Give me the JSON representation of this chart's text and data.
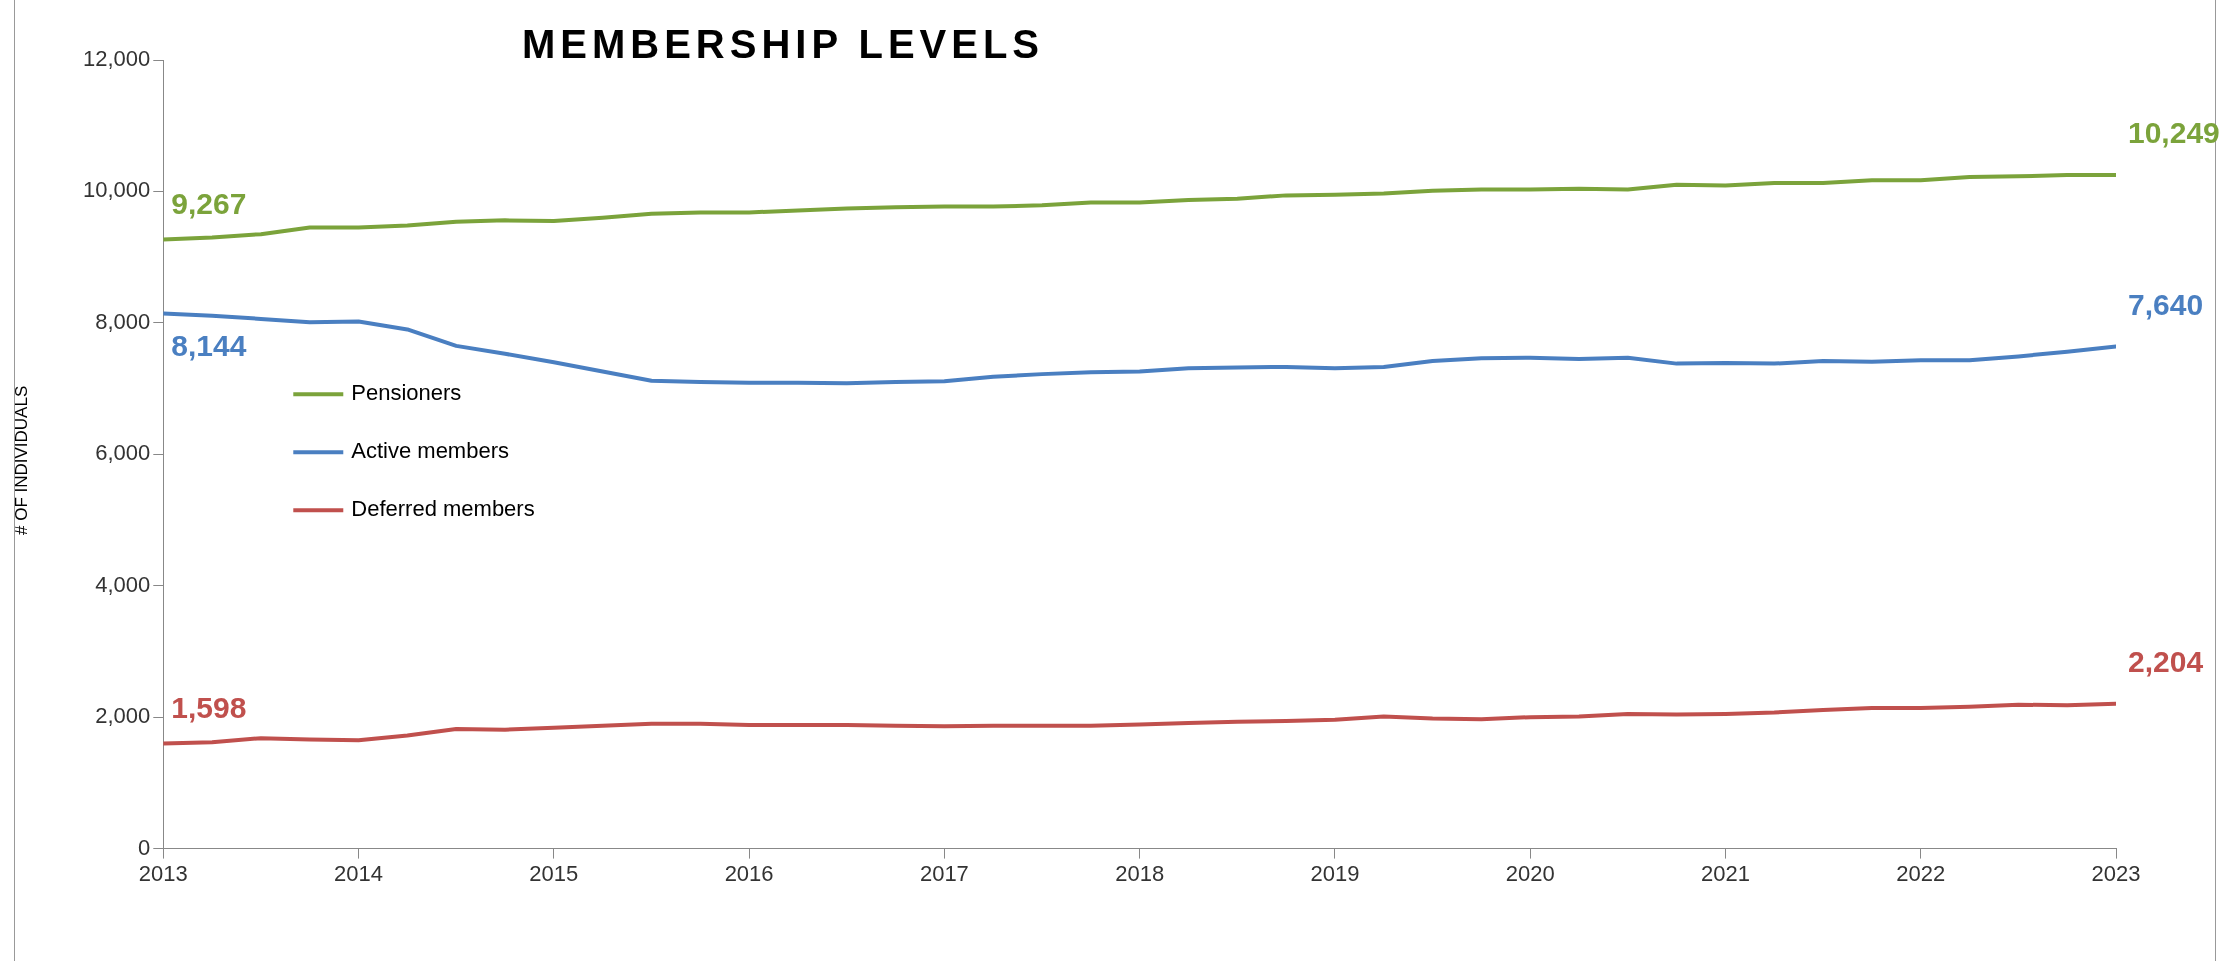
{
  "chart_data": {
    "type": "line",
    "title": "MEMBERSHIP LEVELS",
    "ylabel": "# OF INDIVIDUALS",
    "x": [
      2013,
      2013.25,
      2013.5,
      2013.75,
      2014,
      2014.25,
      2014.5,
      2014.75,
      2015,
      2015.25,
      2015.5,
      2015.75,
      2016,
      2016.25,
      2016.5,
      2016.75,
      2017,
      2017.25,
      2017.5,
      2017.75,
      2018,
      2018.25,
      2018.5,
      2018.75,
      2019,
      2019.25,
      2019.5,
      2019.75,
      2020,
      2020.25,
      2020.5,
      2020.75,
      2021,
      2021.25,
      2021.5,
      2021.75,
      2022,
      2022.25,
      2022.5,
      2022.75,
      2023
    ],
    "series": [
      {
        "name": "Pensioners",
        "color": "#7ba33b",
        "values": [
          9267,
          9300,
          9350,
          9450,
          9450,
          9480,
          9540,
          9560,
          9550,
          9600,
          9660,
          9680,
          9680,
          9710,
          9740,
          9760,
          9770,
          9770,
          9790,
          9830,
          9830,
          9870,
          9890,
          9940,
          9950,
          9970,
          10010,
          10030,
          10030,
          10040,
          10030,
          10100,
          10090,
          10130,
          10130,
          10170,
          10170,
          10220,
          10230,
          10250,
          10249
        ],
        "value_labels": [
          "9,267",
          null,
          null,
          null,
          null,
          null,
          null,
          null,
          null,
          null,
          null,
          null,
          null,
          null,
          null,
          null,
          null,
          null,
          null,
          null,
          null,
          null,
          null,
          null,
          null,
          null,
          null,
          null,
          null,
          null,
          null,
          null,
          null,
          null,
          null,
          null,
          null,
          null,
          null,
          null,
          "10,249"
        ]
      },
      {
        "name": "Active members",
        "color": "#4a7fc1",
        "values": [
          8144,
          8110,
          8060,
          8010,
          8020,
          7900,
          7650,
          7530,
          7400,
          7260,
          7120,
          7100,
          7090,
          7090,
          7080,
          7100,
          7110,
          7180,
          7220,
          7250,
          7260,
          7310,
          7320,
          7330,
          7310,
          7330,
          7420,
          7460,
          7470,
          7450,
          7470,
          7380,
          7390,
          7380,
          7420,
          7410,
          7430,
          7430,
          7490,
          7560,
          7640
        ],
        "value_labels": [
          "8,144",
          null,
          null,
          null,
          null,
          null,
          null,
          null,
          null,
          null,
          null,
          null,
          null,
          null,
          null,
          null,
          null,
          null,
          null,
          null,
          null,
          null,
          null,
          null,
          null,
          null,
          null,
          null,
          null,
          null,
          null,
          null,
          null,
          null,
          null,
          null,
          null,
          null,
          null,
          null,
          "7,640"
        ]
      },
      {
        "name": "Deferred members",
        "color": "#c0504d",
        "values": [
          1598,
          1620,
          1680,
          1660,
          1650,
          1720,
          1820,
          1810,
          1840,
          1870,
          1900,
          1900,
          1880,
          1880,
          1880,
          1870,
          1860,
          1870,
          1870,
          1870,
          1890,
          1910,
          1930,
          1940,
          1960,
          2010,
          1980,
          1970,
          2000,
          2010,
          2050,
          2040,
          2050,
          2070,
          2110,
          2140,
          2140,
          2160,
          2190,
          2180,
          2204
        ],
        "value_labels": [
          "1,598",
          null,
          null,
          null,
          null,
          null,
          null,
          null,
          null,
          null,
          null,
          null,
          null,
          null,
          null,
          null,
          null,
          null,
          null,
          null,
          null,
          null,
          null,
          null,
          null,
          null,
          null,
          null,
          null,
          null,
          null,
          null,
          null,
          null,
          null,
          null,
          null,
          null,
          null,
          null,
          "2,204"
        ]
      }
    ],
    "xlim": [
      2013,
      2023
    ],
    "xticks": [
      2013,
      2014,
      2015,
      2016,
      2017,
      2018,
      2019,
      2020,
      2021,
      2022,
      2023
    ],
    "ylim": [
      0,
      12000
    ],
    "yticks": [
      0,
      {
        "value": 2000,
        "label": "2,000"
      },
      {
        "value": 4000,
        "label": "4,000"
      },
      {
        "value": 6000,
        "label": "6,000"
      },
      {
        "value": 8000,
        "label": "8,000"
      },
      {
        "value": 10000,
        "label": "10,000"
      },
      {
        "value": 12000,
        "label": "12,000"
      }
    ],
    "grid": false,
    "legend": "left",
    "marker": "none",
    "line_style": "solid"
  }
}
